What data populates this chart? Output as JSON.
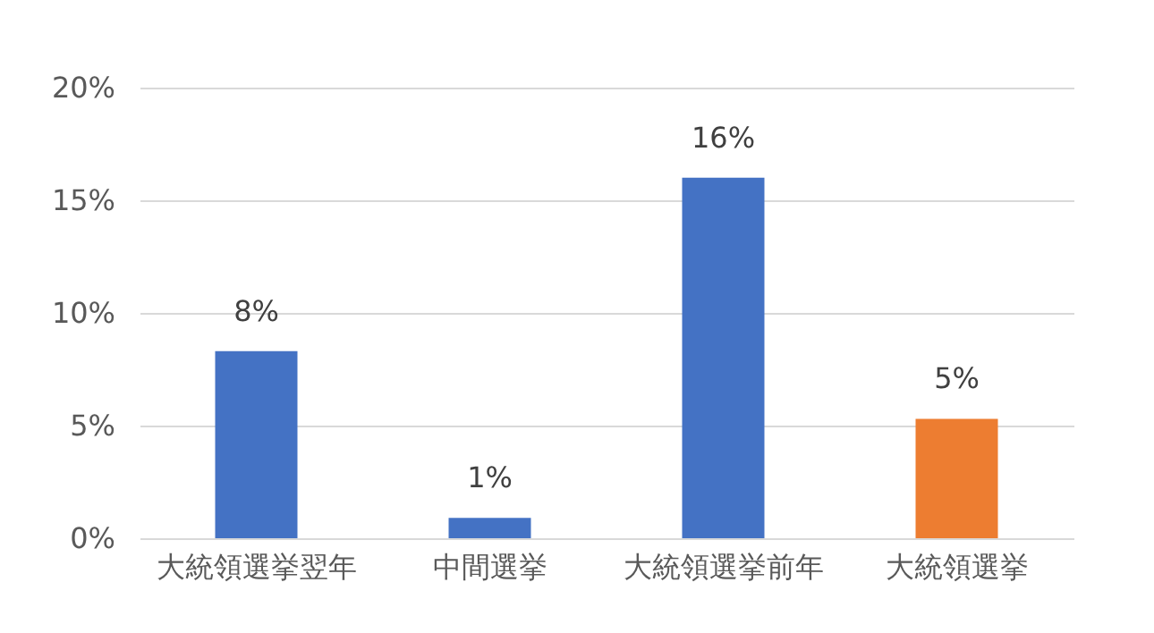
{
  "chart_data": {
    "type": "bar",
    "categories": [
      "大統領選挙翌年",
      "中間選挙",
      "大統領選挙前年",
      "大統領選挙"
    ],
    "values": [
      8.3,
      0.9,
      16,
      5.3
    ],
    "colors": [
      "#4472c4",
      "#4472c4",
      "#4472c4",
      "#ed7d31"
    ],
    "value_labels": [
      "8%",
      "1%",
      "16%",
      "5%"
    ],
    "ylim": [
      0,
      20
    ],
    "yticks": [
      {
        "value": 0,
        "label": "0%"
      },
      {
        "value": 5,
        "label": "5%"
      },
      {
        "value": 10,
        "label": "10%"
      },
      {
        "value": 15,
        "label": "15%"
      },
      {
        "value": 20,
        "label": "20%"
      }
    ],
    "grid": "y"
  }
}
